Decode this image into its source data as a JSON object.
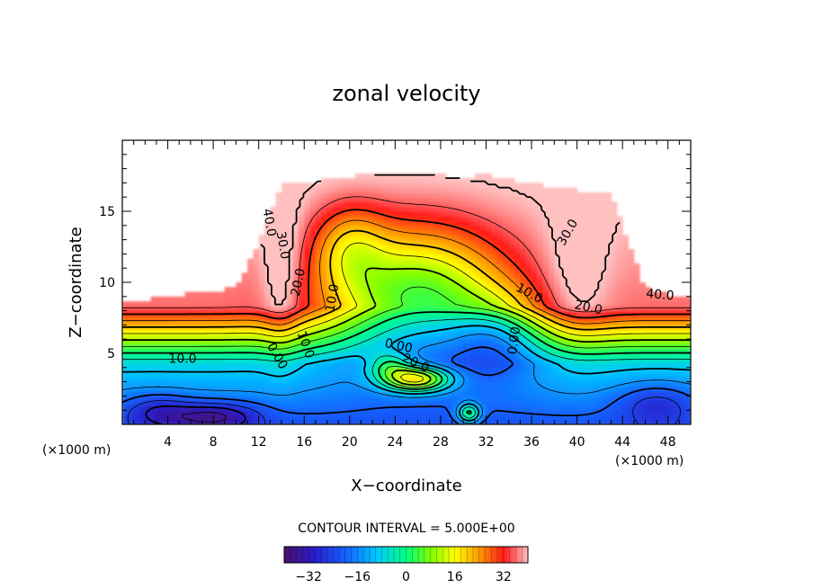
{
  "chart_data": {
    "type": "heatmap",
    "title": "zonal velocity",
    "xlabel": "X−coordinate",
    "ylabel": "Z−coordinate",
    "x_unit_left": "(×1000 m)",
    "x_unit_right": "(×1000 m)",
    "xlim": [
      0,
      50
    ],
    "ylim": [
      0,
      20
    ],
    "x_ticks": [
      4,
      8,
      12,
      16,
      20,
      24,
      28,
      32,
      36,
      40,
      44,
      48
    ],
    "y_ticks": [
      5,
      10,
      15
    ],
    "contour_interval_label": "CONTOUR INTERVAL = 5.000E+00",
    "colorbar": {
      "vmin": -40,
      "vmax": 40,
      "ticks": [
        "−32",
        "−16",
        "0",
        "16",
        "32"
      ],
      "tick_values": [
        -32,
        -16,
        0,
        16,
        32
      ]
    },
    "contour_labels": [
      {
        "text": "40.0",
        "x": 12.9,
        "y": 14.2,
        "rotation": 80
      },
      {
        "text": "30.0",
        "x": 14.1,
        "y": 12.6,
        "rotation": 80
      },
      {
        "text": "20.0",
        "x": 15.5,
        "y": 10.0,
        "rotation": -78
      },
      {
        "text": "10.0",
        "x": 18.5,
        "y": 8.9,
        "rotation": -80
      },
      {
        "text": "10.0",
        "x": 16.1,
        "y": 5.6,
        "rotation": 70
      },
      {
        "text": "0.00",
        "x": 13.6,
        "y": 4.8,
        "rotation": 60
      },
      {
        "text": "10.0",
        "x": 5.3,
        "y": 4.6,
        "rotation": 0
      },
      {
        "text": "0.00",
        "x": 24.3,
        "y": 5.5,
        "rotation": 12
      },
      {
        "text": "20.0",
        "x": 25.8,
        "y": 4.3,
        "rotation": 25
      },
      {
        "text": "10.0",
        "x": 35.8,
        "y": 9.2,
        "rotation": 28
      },
      {
        "text": "0.00",
        "x": 34.5,
        "y": 5.9,
        "rotation": -82
      },
      {
        "text": "20.0",
        "x": 41.0,
        "y": 8.2,
        "rotation": 12
      },
      {
        "text": "30.0",
        "x": 39.2,
        "y": 13.5,
        "rotation": -60
      },
      {
        "text": "40.0",
        "x": 47.3,
        "y": 9.1,
        "rotation": 5
      }
    ]
  }
}
